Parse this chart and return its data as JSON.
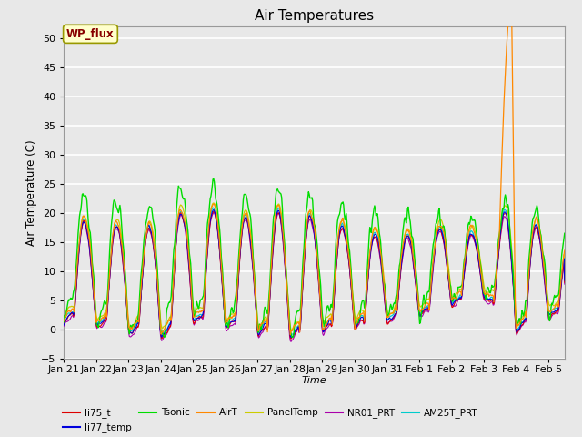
{
  "title": "Air Temperatures",
  "xlabel": "Time",
  "ylabel": "Air Temperature (C)",
  "ylim": [
    -5,
    52
  ],
  "yticks": [
    -5,
    0,
    5,
    10,
    15,
    20,
    25,
    30,
    35,
    40,
    45,
    50
  ],
  "date_labels": [
    "Jan 21",
    "Jan 22",
    "Jan 23",
    "Jan 24",
    "Jan 25",
    "Jan 26",
    "Jan 27",
    "Jan 28",
    "Jan 29",
    "Jan 30",
    "Jan 31",
    "Feb 1",
    "Feb 2",
    "Feb 3",
    "Feb 4",
    "Feb 5"
  ],
  "series": {
    "li75_t": {
      "color": "#dd0000",
      "lw": 0.8,
      "zorder": 4
    },
    "li77_temp": {
      "color": "#0000dd",
      "lw": 0.8,
      "zorder": 4
    },
    "Tsonic": {
      "color": "#00dd00",
      "lw": 1.0,
      "zorder": 5
    },
    "AirT": {
      "color": "#ff8800",
      "lw": 0.9,
      "zorder": 6
    },
    "PanelTemp": {
      "color": "#cccc00",
      "lw": 0.9,
      "zorder": 3
    },
    "NR01_PRT": {
      "color": "#aa00aa",
      "lw": 0.8,
      "zorder": 4
    },
    "AM25T_PRT": {
      "color": "#00cccc",
      "lw": 0.9,
      "zorder": 4
    }
  },
  "plot_bg_color": "#e8e8e8",
  "grid_color": "#ffffff",
  "annotation_text": "WP_flux",
  "annotation_bg": "#ffffcc",
  "annotation_border": "#999900",
  "annotation_fg": "#880000",
  "legend_order": [
    "li75_t",
    "li77_temp",
    "Tsonic",
    "AirT",
    "PanelTemp",
    "NR01_PRT",
    "AM25T_PRT"
  ]
}
